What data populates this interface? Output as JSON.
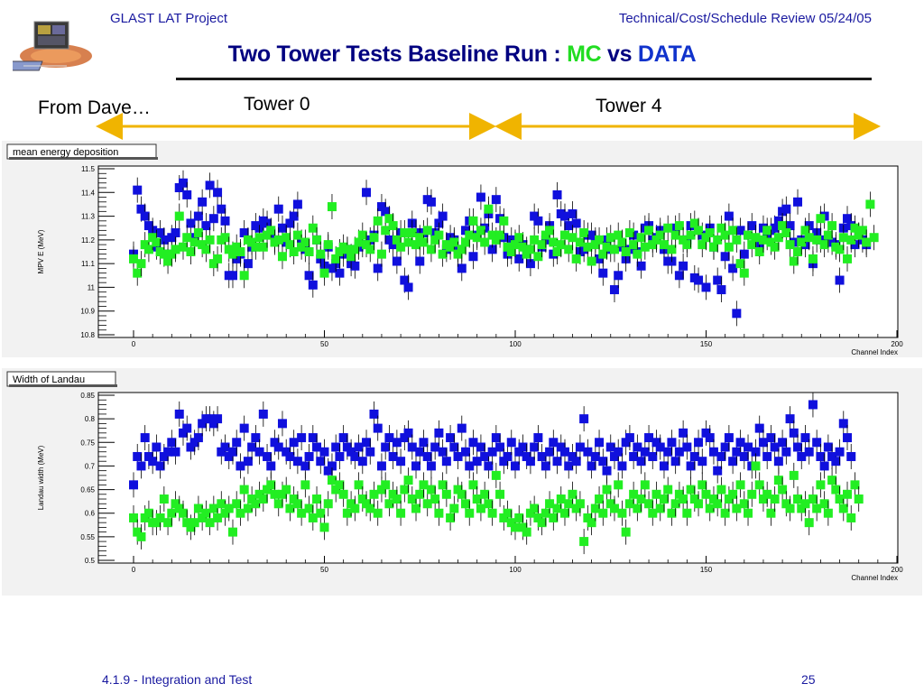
{
  "header": {
    "project": "GLAST LAT Project",
    "review": "Technical/Cost/Schedule Review 05/24/05"
  },
  "title": {
    "prefix": "Two Tower Tests Baseline Run : ",
    "mc": "MC",
    "vs": " vs ",
    "data": "DATA"
  },
  "labels": {
    "from": "From Dave…",
    "tower0": "Tower 0",
    "tower4": "Tower 4"
  },
  "footer": {
    "section": "4.1.9 - Integration and Test",
    "page": "25"
  },
  "colors": {
    "data_series": "#1010dd",
    "mc_series": "#22ee22",
    "arrow": "#f0b400",
    "header_text": "#1a1aa0"
  },
  "chart_data": [
    {
      "type": "scatter",
      "title": "mean energy deposition",
      "xlabel": "Channel Index",
      "ylabel": "MPV E (MeV)",
      "xlim": [
        0,
        200
      ],
      "ylim": [
        10.8,
        11.5
      ],
      "xticks": [
        "0",
        "50",
        "100",
        "150",
        "200"
      ],
      "yticks": [
        "10.8",
        "10.9",
        "11",
        "11.1",
        "11.2",
        "11.3",
        "11.4",
        "11.5"
      ],
      "grid": false,
      "error_bars": true,
      "series": [
        {
          "color": "#1010dd",
          "values": [
            11.14,
            11.41,
            11.33,
            11.3,
            11.26,
            11.24,
            11.17,
            11.23,
            11.2,
            11.14,
            11.21,
            11.23,
            11.42,
            11.44,
            11.39,
            11.27,
            11.21,
            11.3,
            11.36,
            11.26,
            11.43,
            11.29,
            11.4,
            11.33,
            11.28,
            11.05,
            11.05,
            11.12,
            11.14,
            11.23,
            11.1,
            11.17,
            11.26,
            11.25,
            11.28,
            11.27,
            11.23,
            11.2,
            11.33,
            11.25,
            11.19,
            11.27,
            11.3,
            11.35,
            11.19,
            11.16,
            11.05,
            11.01,
            11.2,
            11.12,
            11.09,
            11.17,
            11.08,
            11.1,
            11.06,
            11.14,
            11.16,
            11.1,
            11.09,
            11.17,
            11.18,
            11.4,
            11.2,
            11.22,
            11.08,
            11.34,
            11.32,
            11.2,
            11.18,
            11.11,
            11.23,
            11.03,
            11.0,
            11.27,
            11.23,
            11.11,
            11.23,
            11.37,
            11.36,
            11.23,
            11.27,
            11.3,
            11.16,
            11.21,
            11.2,
            11.16,
            11.08,
            11.24,
            11.28,
            11.13,
            11.22,
            11.38,
            11.25,
            11.31,
            11.16,
            11.37,
            11.29,
            11.21,
            11.14,
            11.2,
            11.19,
            11.12,
            11.18,
            11.16,
            11.1,
            11.3,
            11.28,
            11.17,
            11.2,
            11.26,
            11.14,
            11.39,
            11.31,
            11.3,
            11.26,
            11.31,
            11.27,
            11.15,
            11.16,
            11.22,
            11.22,
            11.2,
            11.12,
            11.06,
            11.2,
            11.16,
            10.99,
            11.05,
            11.17,
            11.12,
            11.16,
            11.22,
            11.15,
            11.09,
            11.25,
            11.26,
            11.2,
            11.21,
            11.24,
            11.16,
            11.11,
            11.11,
            11.25,
            11.05,
            11.09,
            11.2,
            11.26,
            11.04,
            11.03,
            11.22,
            11.0,
            11.25,
            11.17,
            11.03,
            10.99,
            11.13,
            11.3,
            11.08,
            10.89,
            11.24,
            11.14,
            11.22,
            11.26,
            11.19,
            11.18,
            11.25,
            11.21,
            11.24,
            11.25,
            11.28,
            11.32,
            11.33,
            11.26,
            11.19,
            11.36,
            11.2,
            11.18,
            11.26,
            11.1,
            11.23,
            11.2,
            11.3,
            11.2,
            11.19,
            11.18,
            11.03,
            11.25,
            11.29,
            11.26,
            11.18,
            11.22,
            11.2,
            11.18
          ]
        },
        {
          "color": "#22ee22",
          "values": [
            11.12,
            11.06,
            11.1,
            11.18,
            11.16,
            11.21,
            11.19,
            11.15,
            11.14,
            11.11,
            11.14,
            11.16,
            11.3,
            11.17,
            11.21,
            11.15,
            11.19,
            11.23,
            11.18,
            11.16,
            11.2,
            11.1,
            11.12,
            11.2,
            11.21,
            11.16,
            11.14,
            11.17,
            11.15,
            11.05,
            11.2,
            11.19,
            11.17,
            11.21,
            11.17,
            11.22,
            11.24,
            11.19,
            11.2,
            11.13,
            11.21,
            11.18,
            11.15,
            11.22,
            11.17,
            11.19,
            11.15,
            11.25,
            11.2,
            11.14,
            11.06,
            11.18,
            11.34,
            11.12,
            11.15,
            11.17,
            11.16,
            11.13,
            11.16,
            11.19,
            11.22,
            11.18,
            11.16,
            11.21,
            11.28,
            11.14,
            11.24,
            11.29,
            11.26,
            11.2,
            11.17,
            11.23,
            11.19,
            11.23,
            11.18,
            11.21,
            11.19,
            11.24,
            11.16,
            11.2,
            11.22,
            11.14,
            11.18,
            11.17,
            11.19,
            11.14,
            11.16,
            11.19,
            11.22,
            11.28,
            11.21,
            11.24,
            11.19,
            11.33,
            11.22,
            11.2,
            11.22,
            11.28,
            11.17,
            11.15,
            11.18,
            11.21,
            11.17,
            11.14,
            11.16,
            11.2,
            11.13,
            11.18,
            11.22,
            11.24,
            11.19,
            11.15,
            11.18,
            11.22,
            11.16,
            11.21,
            11.12,
            11.19,
            11.23,
            11.17,
            11.11,
            11.18,
            11.2,
            11.14,
            11.17,
            11.21,
            11.16,
            11.22,
            11.19,
            11.15,
            11.23,
            11.18,
            11.14,
            11.21,
            11.17,
            11.24,
            11.18,
            11.2,
            11.22,
            11.18,
            11.25,
            11.16,
            11.22,
            11.26,
            11.2,
            11.18,
            11.22,
            11.27,
            11.24,
            11.18,
            11.21,
            11.23,
            11.17,
            11.2,
            11.25,
            11.22,
            11.17,
            11.24,
            11.2,
            11.1,
            11.06,
            11.22,
            11.18,
            11.21,
            11.15,
            11.2,
            11.24,
            11.19,
            11.17,
            11.21,
            11.26,
            11.23,
            11.18,
            11.11,
            11.15,
            11.19,
            11.24,
            11.21,
            11.12,
            11.2,
            11.29,
            11.18,
            11.22,
            11.26,
            11.17,
            11.16,
            11.21,
            11.12,
            11.2,
            11.25,
            11.22,
            11.24,
            11.19,
            11.35,
            11.21
          ]
        }
      ]
    },
    {
      "type": "scatter",
      "title": "Width of Landau",
      "xlabel": "Channel Index",
      "ylabel": "Landau width (MeV)",
      "xlim": [
        0,
        200
      ],
      "ylim": [
        0.5,
        0.85
      ],
      "xticks": [
        "0",
        "50",
        "100",
        "150",
        "200"
      ],
      "yticks": [
        "0.5",
        "0.55",
        "0.6",
        "0.65",
        "0.7",
        "0.75",
        "0.8",
        "0.85"
      ],
      "grid": false,
      "error_bars": true,
      "series": [
        {
          "color": "#1010dd",
          "values": [
            0.66,
            0.72,
            0.7,
            0.76,
            0.72,
            0.71,
            0.74,
            0.7,
            0.72,
            0.73,
            0.75,
            0.73,
            0.81,
            0.77,
            0.78,
            0.74,
            0.75,
            0.76,
            0.79,
            0.8,
            0.8,
            0.79,
            0.8,
            0.73,
            0.74,
            0.72,
            0.73,
            0.75,
            0.7,
            0.78,
            0.71,
            0.74,
            0.76,
            0.73,
            0.81,
            0.72,
            0.7,
            0.75,
            0.74,
            0.79,
            0.73,
            0.72,
            0.75,
            0.71,
            0.76,
            0.7,
            0.72,
            0.76,
            0.74,
            0.71,
            0.73,
            0.69,
            0.7,
            0.74,
            0.72,
            0.76,
            0.74,
            0.73,
            0.72,
            0.74,
            0.71,
            0.75,
            0.73,
            0.81,
            0.78,
            0.7,
            0.74,
            0.76,
            0.72,
            0.75,
            0.71,
            0.76,
            0.77,
            0.74,
            0.7,
            0.73,
            0.75,
            0.72,
            0.7,
            0.74,
            0.77,
            0.73,
            0.71,
            0.76,
            0.74,
            0.72,
            0.78,
            0.73,
            0.7,
            0.75,
            0.71,
            0.74,
            0.72,
            0.7,
            0.73,
            0.76,
            0.74,
            0.71,
            0.72,
            0.75,
            0.7,
            0.73,
            0.74,
            0.72,
            0.71,
            0.74,
            0.76,
            0.72,
            0.7,
            0.73,
            0.75,
            0.71,
            0.74,
            0.73,
            0.7,
            0.72,
            0.71,
            0.74,
            0.8,
            0.73,
            0.7,
            0.72,
            0.75,
            0.71,
            0.69,
            0.74,
            0.72,
            0.73,
            0.7,
            0.75,
            0.76,
            0.72,
            0.74,
            0.71,
            0.73,
            0.76,
            0.72,
            0.75,
            0.74,
            0.7,
            0.73,
            0.75,
            0.71,
            0.73,
            0.77,
            0.74,
            0.7,
            0.72,
            0.75,
            0.71,
            0.77,
            0.76,
            0.73,
            0.69,
            0.72,
            0.74,
            0.76,
            0.71,
            0.73,
            0.75,
            0.72,
            0.74,
            0.7,
            0.73,
            0.78,
            0.75,
            0.72,
            0.76,
            0.74,
            0.71,
            0.75,
            0.73,
            0.8,
            0.77,
            0.74,
            0.72,
            0.76,
            0.73,
            0.83,
            0.75,
            0.72,
            0.7,
            0.74,
            0.72,
            0.71,
            0.73,
            0.79,
            0.76,
            0.72
          ]
        },
        {
          "color": "#22ee22",
          "values": [
            0.59,
            0.56,
            0.55,
            0.59,
            0.6,
            0.58,
            0.58,
            0.59,
            0.63,
            0.58,
            0.6,
            0.62,
            0.61,
            0.6,
            0.58,
            0.57,
            0.58,
            0.61,
            0.59,
            0.6,
            0.58,
            0.61,
            0.59,
            0.62,
            0.6,
            0.61,
            0.56,
            0.62,
            0.6,
            0.65,
            0.61,
            0.63,
            0.62,
            0.64,
            0.63,
            0.65,
            0.66,
            0.64,
            0.62,
            0.64,
            0.65,
            0.61,
            0.63,
            0.62,
            0.6,
            0.66,
            0.61,
            0.59,
            0.63,
            0.6,
            0.57,
            0.62,
            0.67,
            0.65,
            0.66,
            0.64,
            0.6,
            0.62,
            0.61,
            0.66,
            0.63,
            0.62,
            0.61,
            0.64,
            0.6,
            0.65,
            0.66,
            0.62,
            0.64,
            0.63,
            0.6,
            0.65,
            0.67,
            0.63,
            0.61,
            0.64,
            0.66,
            0.62,
            0.65,
            0.63,
            0.6,
            0.66,
            0.64,
            0.59,
            0.61,
            0.65,
            0.64,
            0.62,
            0.6,
            0.66,
            0.63,
            0.61,
            0.64,
            0.62,
            0.6,
            0.68,
            0.64,
            0.59,
            0.6,
            0.58,
            0.57,
            0.59,
            0.57,
            0.56,
            0.6,
            0.61,
            0.59,
            0.58,
            0.6,
            0.62,
            0.59,
            0.61,
            0.63,
            0.6,
            0.62,
            0.64,
            0.61,
            0.62,
            0.54,
            0.59,
            0.58,
            0.61,
            0.63,
            0.6,
            0.65,
            0.62,
            0.61,
            0.66,
            0.6,
            0.56,
            0.62,
            0.64,
            0.61,
            0.63,
            0.66,
            0.62,
            0.6,
            0.64,
            0.61,
            0.63,
            0.65,
            0.6,
            0.62,
            0.64,
            0.63,
            0.6,
            0.65,
            0.63,
            0.62,
            0.66,
            0.64,
            0.61,
            0.63,
            0.62,
            0.65,
            0.6,
            0.63,
            0.64,
            0.61,
            0.66,
            0.62,
            0.6,
            0.64,
            0.7,
            0.66,
            0.63,
            0.64,
            0.6,
            0.63,
            0.67,
            0.65,
            0.62,
            0.61,
            0.68,
            0.63,
            0.61,
            0.62,
            0.58,
            0.63,
            0.61,
            0.66,
            0.62,
            0.6,
            0.67,
            0.65,
            0.63,
            0.61,
            0.64,
            0.59,
            0.66,
            0.63
          ]
        }
      ]
    }
  ]
}
